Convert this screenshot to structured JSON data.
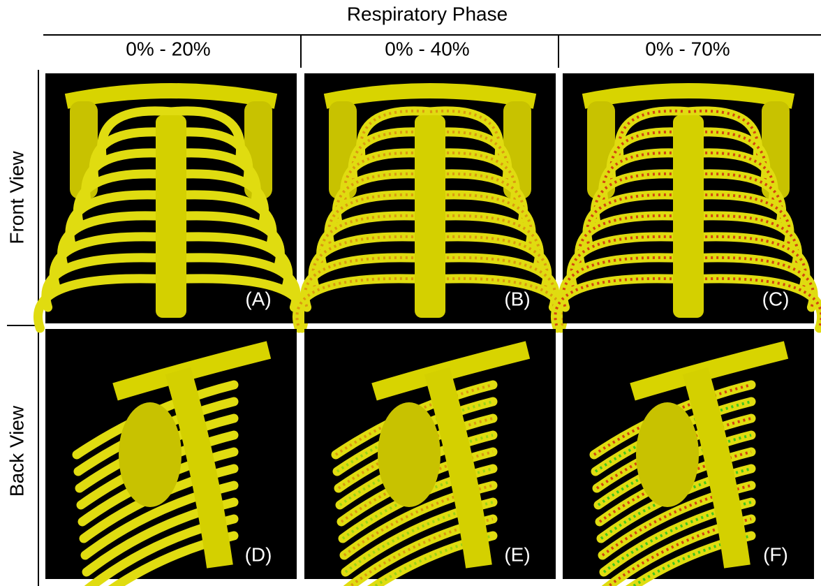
{
  "header": {
    "title": "Respiratory Phase",
    "columns": [
      "0% - 20%",
      "0% - 40%",
      "0% - 70%"
    ]
  },
  "rows": [
    "Front View",
    "Back View"
  ],
  "panels": [
    [
      "(A)",
      "(B)",
      "(C)"
    ],
    [
      "(D)",
      "(E)",
      "(F)"
    ]
  ]
}
